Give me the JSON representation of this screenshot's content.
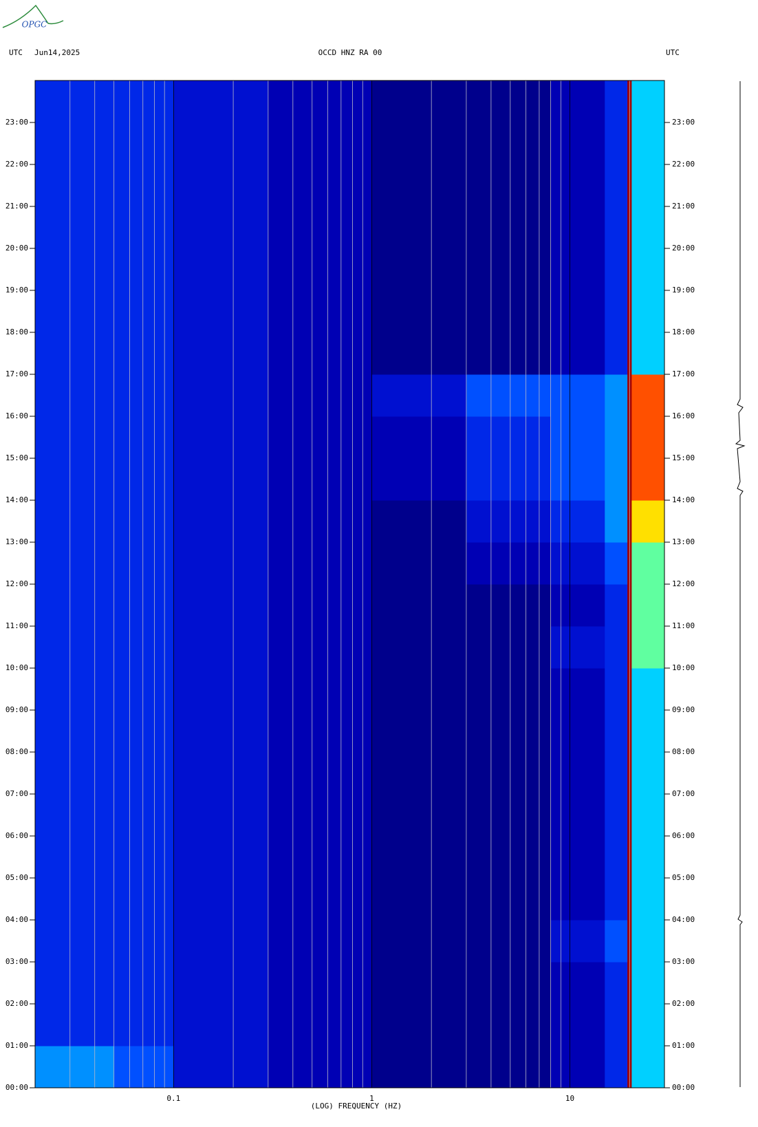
{
  "logo": "OPGC",
  "chart_data": {
    "type": "spectrogram",
    "header_left": "UTC",
    "date": "Jun14,2025",
    "title": "OCCD HNZ RA 00",
    "header_right": "UTC",
    "x_label": "(LOG) FREQUENCY (HZ)",
    "x_log": true,
    "xlim": [
      0.02,
      30
    ],
    "xticks": [
      0.1,
      1,
      10
    ],
    "xminor": [
      0.03,
      0.04,
      0.05,
      0.06,
      0.07,
      0.08,
      0.09,
      0.2,
      0.3,
      0.4,
      0.5,
      0.6,
      0.7,
      0.8,
      0.9,
      2,
      3,
      4,
      5,
      6,
      7,
      8,
      9,
      20
    ],
    "ylim": [
      0,
      24
    ],
    "yticks": [
      {
        "value": 0,
        "label": "00:00"
      },
      {
        "value": 1,
        "label": "01:00"
      },
      {
        "value": 2,
        "label": "02:00"
      },
      {
        "value": 3,
        "label": "03:00"
      },
      {
        "value": 4,
        "label": "04:00"
      },
      {
        "value": 5,
        "label": "05:00"
      },
      {
        "value": 6,
        "label": "06:00"
      },
      {
        "value": 7,
        "label": "07:00"
      },
      {
        "value": 8,
        "label": "08:00"
      },
      {
        "value": 9,
        "label": "09:00"
      },
      {
        "value": 10,
        "label": "10:00"
      },
      {
        "value": 11,
        "label": "11:00"
      },
      {
        "value": 12,
        "label": "12:00"
      },
      {
        "value": 13,
        "label": "13:00"
      },
      {
        "value": 14,
        "label": "14:00"
      },
      {
        "value": 15,
        "label": "15:00"
      },
      {
        "value": 16,
        "label": "16:00"
      },
      {
        "value": 17,
        "label": "17:00"
      },
      {
        "value": 18,
        "label": "18:00"
      },
      {
        "value": 19,
        "label": "19:00"
      },
      {
        "value": 20,
        "label": "20:00"
      },
      {
        "value": 21,
        "label": "21:00"
      },
      {
        "value": 22,
        "label": "22:00"
      },
      {
        "value": 23,
        "label": "23:00"
      }
    ],
    "xbins": [
      0.02,
      0.05,
      0.1,
      0.3,
      1,
      3,
      8,
      15,
      19.5,
      20.5,
      30
    ],
    "ybins": [
      0,
      1,
      2,
      3,
      4,
      5,
      6,
      7,
      8,
      9,
      10,
      11,
      12,
      13,
      14,
      15,
      16,
      17,
      18,
      19,
      20,
      21,
      22,
      23,
      24
    ],
    "zlim": [
      0,
      10
    ],
    "colorscale": [
      "#00008c",
      "#0000b4",
      "#0010d0",
      "#0028e8",
      "#0050ff",
      "#0090ff",
      "#00d0ff",
      "#60ffa0",
      "#ffe000",
      "#ff5000",
      "#a00000"
    ],
    "z": [
      [
        5,
        4,
        2,
        1,
        0,
        0,
        1,
        3,
        10,
        6
      ],
      [
        3,
        3,
        2,
        1,
        0,
        0,
        1,
        3,
        10,
        6
      ],
      [
        3,
        3,
        2,
        1,
        0,
        0,
        1,
        3,
        10,
        6
      ],
      [
        3,
        3,
        2,
        1,
        0,
        0,
        2,
        4,
        10,
        6
      ],
      [
        3,
        3,
        2,
        1,
        0,
        0,
        1,
        3,
        10,
        6
      ],
      [
        3,
        3,
        2,
        1,
        0,
        0,
        1,
        3,
        10,
        6
      ],
      [
        3,
        3,
        2,
        1,
        0,
        0,
        1,
        3,
        10,
        6
      ],
      [
        3,
        3,
        2,
        1,
        0,
        0,
        1,
        3,
        10,
        6
      ],
      [
        3,
        3,
        2,
        1,
        0,
        0,
        1,
        3,
        10,
        6
      ],
      [
        3,
        3,
        2,
        1,
        0,
        0,
        1,
        3,
        10,
        6
      ],
      [
        3,
        3,
        2,
        1,
        0,
        0,
        2,
        3,
        10,
        7
      ],
      [
        3,
        3,
        2,
        1,
        0,
        0,
        1,
        3,
        10,
        7
      ],
      [
        3,
        3,
        2,
        1,
        0,
        1,
        2,
        4,
        10,
        7
      ],
      [
        3,
        3,
        2,
        1,
        0,
        2,
        3,
        5,
        10,
        8
      ],
      [
        3,
        3,
        2,
        1,
        1,
        3,
        4,
        5,
        10,
        9
      ],
      [
        3,
        3,
        2,
        1,
        1,
        3,
        4,
        5,
        10,
        9
      ],
      [
        3,
        3,
        2,
        1,
        2,
        4,
        4,
        5,
        10,
        9
      ],
      [
        3,
        3,
        2,
        1,
        0,
        0,
        1,
        3,
        10,
        6
      ],
      [
        3,
        3,
        2,
        1,
        0,
        0,
        1,
        3,
        10,
        6
      ],
      [
        3,
        3,
        2,
        1,
        0,
        0,
        1,
        3,
        10,
        6
      ],
      [
        3,
        3,
        2,
        1,
        0,
        0,
        1,
        3,
        10,
        6
      ],
      [
        3,
        3,
        2,
        1,
        0,
        0,
        1,
        3,
        10,
        6
      ],
      [
        3,
        3,
        2,
        1,
        0,
        0,
        1,
        3,
        10,
        6
      ],
      [
        3,
        3,
        2,
        1,
        0,
        0,
        1,
        3,
        10,
        6
      ]
    ]
  }
}
